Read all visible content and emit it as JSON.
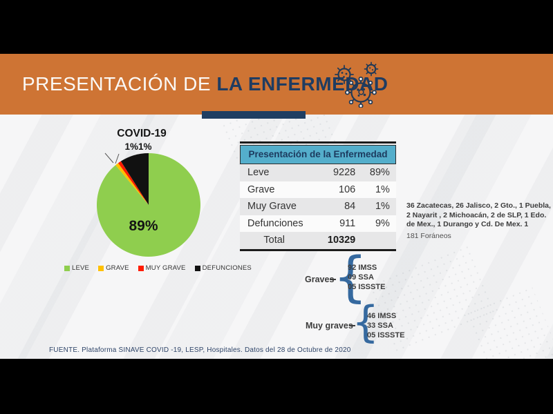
{
  "banner": {
    "title_light": "PRESENTACIÓN DE ",
    "title_bold": "LA ENFERMEDAD",
    "bg_color": "#CE7434",
    "navy_color": "#1F3E62"
  },
  "chart_data": {
    "type": "pie",
    "title": "COVID-19",
    "categories": [
      "LEVE",
      "GRAVE",
      "MUY GRAVE",
      "DEFUNCIONES"
    ],
    "values": [
      89,
      1,
      1,
      9
    ],
    "colors": [
      "#8FCE4E",
      "#FFC000",
      "#FF1C00",
      "#111111"
    ],
    "inside_label": "89%",
    "callout_label": "1%1%",
    "start_angle_deg": 0,
    "direction": "clockwise",
    "legend_position": "bottom"
  },
  "table": {
    "title": "Presentación de la Enfermedad",
    "header_bg": "#54AECB",
    "rows": [
      {
        "label": "Leve",
        "value": "9228",
        "pct": "89%"
      },
      {
        "label": "Grave",
        "value": "106",
        "pct": "1%"
      },
      {
        "label": "Muy Grave",
        "value": "84",
        "pct": "1%"
      },
      {
        "label": "Defunciones",
        "value": "911",
        "pct": "9%"
      }
    ],
    "total": {
      "label": "Total",
      "value": "10329",
      "pct": ""
    }
  },
  "notes": {
    "states": "36 Zacatecas, 26 Jalisco, 2 Gto., 1 Puebla, 2 Nayarit , 2 Michoacán, 2 de SLP, 1 Edo. de Mex., 1 Durango y Cd. De Mex. 1",
    "foraneos": "181 Foráneos"
  },
  "groups": [
    {
      "label": "Graves",
      "items": {
        "0": "92 IMSS",
        "1": "09 SSA",
        "2": "05 ISSSTE"
      }
    },
    {
      "label": "Muy graves",
      "items": {
        "0": "46 IMSS",
        "1": "33 SSA",
        "2": "05 ISSSTE"
      }
    }
  ],
  "footer": {
    "source": "FUENTE. Plataforma SINAVE COVID -19, LESP, Hospitales. Datos del 28 de Octubre de 2020"
  },
  "icons": {
    "header_icon": "virus-icon"
  }
}
